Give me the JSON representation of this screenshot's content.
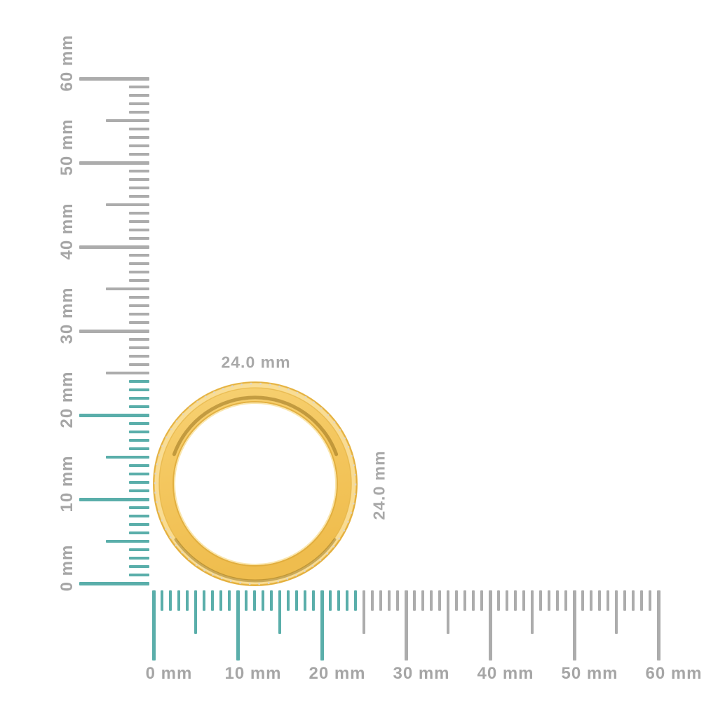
{
  "colors": {
    "background": "#ffffff",
    "highlight_teal": "#5aaeaa",
    "tick_gray": "#acacac",
    "label_gray": "#a6a6a6",
    "dim_label_gray": "#a9a9a9",
    "gold_main": "#f4c75f",
    "gold_light": "#f9dd97",
    "gold_edge": "#e0ac3c",
    "gold_dark": "#8f6a15",
    "stone": "#d8d5d0"
  },
  "rulers": {
    "unit": "mm",
    "vertical": {
      "min_mm": 0,
      "max_mm": 60,
      "minor_step_mm": 1,
      "medium_step_mm": 5,
      "major_step_mm": 10,
      "labels": [
        "0 mm",
        "10 mm",
        "20 mm",
        "30 mm",
        "40 mm",
        "50 mm",
        "60 mm"
      ]
    },
    "horizontal": {
      "min_mm": 0,
      "max_mm": 60,
      "minor_step_mm": 1,
      "medium_step_mm": 5,
      "major_step_mm": 10,
      "labels": [
        "0 mm",
        "10 mm",
        "20 mm",
        "30 mm",
        "40 mm",
        "50 mm",
        "60 mm"
      ]
    },
    "highlight_until_mm": 24
  },
  "ring": {
    "width_label": "24.0 mm",
    "height_label": "24.0 mm",
    "diameter_mm": 24
  }
}
